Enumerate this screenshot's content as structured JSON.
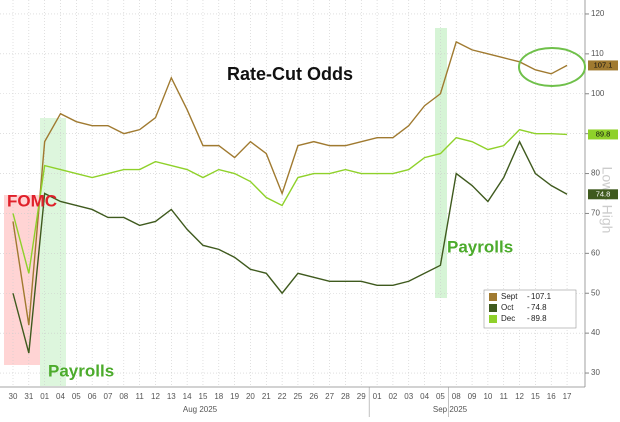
{
  "chart_data": {
    "type": "line",
    "title": "Rate-Cut Odds",
    "categories": [
      "30",
      "31",
      "01",
      "04",
      "05",
      "06",
      "07",
      "08",
      "11",
      "12",
      "13",
      "14",
      "15",
      "18",
      "19",
      "20",
      "21",
      "22",
      "25",
      "26",
      "27",
      "28",
      "29",
      "01",
      "02",
      "03",
      "04",
      "05",
      "08",
      "09",
      "10",
      "11",
      "12",
      "15",
      "16",
      "17"
    ],
    "month_labels": [
      "Aug 2025",
      "Sep 2025"
    ],
    "annotations": [
      "FOMC",
      "Payrolls",
      "Payrolls"
    ],
    "axis_label": "Low - High",
    "series": [
      {
        "name": "Sept",
        "color": "#a07a30",
        "values": [
          68,
          42,
          88,
          95,
          93,
          92,
          92,
          90,
          91,
          94,
          104,
          96,
          87,
          87,
          84,
          88,
          85,
          75,
          87,
          88,
          87,
          87,
          88,
          89,
          89,
          92,
          97,
          100,
          113,
          111,
          110,
          109,
          108,
          106,
          105,
          107.1
        ]
      },
      {
        "name": "Oct",
        "color": "#3f5a1e",
        "values": [
          50,
          35,
          75,
          73,
          72,
          71,
          69,
          69,
          67,
          68,
          71,
          66,
          62,
          61,
          59,
          56,
          55,
          50,
          55,
          54,
          53,
          53,
          53,
          52,
          52,
          53,
          55,
          57,
          80,
          77,
          73,
          79,
          88,
          80,
          77,
          74.8
        ]
      },
      {
        "name": "Dec",
        "color": "#8fd12a",
        "values": [
          70,
          55,
          82,
          81,
          80,
          79,
          80,
          81,
          81,
          83,
          82,
          81,
          79,
          81,
          80,
          78,
          74,
          72,
          79,
          80,
          80,
          81,
          80,
          80,
          80,
          81,
          84,
          85,
          89,
          88,
          86,
          87,
          91,
          90,
          90,
          89.8
        ]
      }
    ],
    "ylim": [
      26.5,
      123.5
    ],
    "yticks": [
      30,
      40,
      50,
      60,
      70,
      80,
      90,
      100,
      110,
      120
    ],
    "grid": true
  }
}
